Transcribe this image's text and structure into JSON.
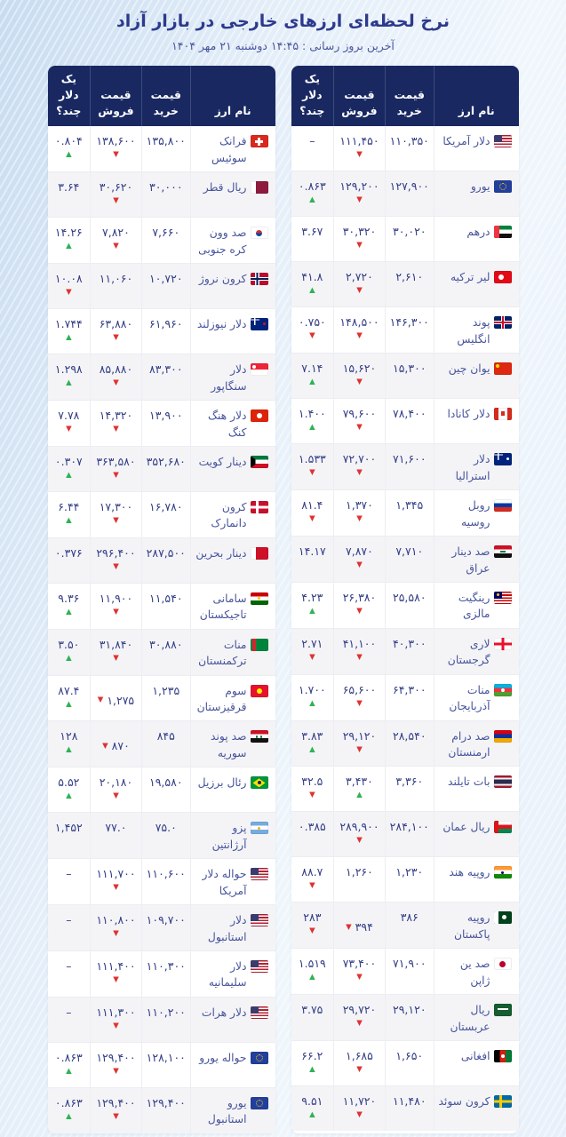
{
  "page": {
    "title": "نرخ لحظه‌ای ارزهای خارجی در بازار آزاد",
    "subtitle": "آخرین بروز رسانی : ۱۴:۴۵ دوشنبه ۲۱ مهر ۱۴۰۴"
  },
  "colors": {
    "header_bg": "#192861",
    "title_text": "#2d3a8c",
    "number_text": "#333e86",
    "up_arrow": "#2eb353",
    "down_arrow": "#e03131",
    "zebra_row": "#f4f4f7"
  },
  "columns": {
    "name": "نام ارز",
    "buy": "قیمت خرید",
    "sell": "قیمت فروش",
    "dollar": "یک دلار چند؟"
  },
  "tables": [
    {
      "rows": [
        {
          "name": "دلار آمریکا",
          "flag": "us",
          "buy": "۱۱۰,۳۵۰",
          "sell": "۱۱۱,۴۵۰",
          "sell_dir": "down",
          "dollar": "–",
          "dollar_dir": ""
        },
        {
          "name": "یورو",
          "flag": "eu",
          "buy": "۱۲۷,۹۰۰",
          "sell": "۱۲۹,۲۰۰",
          "sell_dir": "down",
          "dollar": "۰.۸۶۳",
          "dollar_dir": "up"
        },
        {
          "name": "درهم",
          "flag": "ae",
          "buy": "۳۰,۰۲۰",
          "sell": "۳۰,۳۲۰",
          "sell_dir": "down",
          "dollar": "۳.۶۷",
          "dollar_dir": ""
        },
        {
          "name": "لیر ترکیه",
          "flag": "tr",
          "buy": "۲,۶۱۰",
          "sell": "۲,۷۲۰",
          "sell_dir": "down",
          "dollar": "۴۱.۸",
          "dollar_dir": "up"
        },
        {
          "name": "پوند انگلیس",
          "flag": "gb",
          "buy": "۱۴۶,۳۰۰",
          "sell": "۱۴۸,۵۰۰",
          "sell_dir": "down",
          "dollar": "۰.۷۵۰",
          "dollar_dir": "down"
        },
        {
          "name": "یوان چین",
          "flag": "cn",
          "buy": "۱۵,۳۰۰",
          "sell": "۱۵,۶۲۰",
          "sell_dir": "down",
          "dollar": "۷.۱۴",
          "dollar_dir": "up"
        },
        {
          "name": "دلار کانادا",
          "flag": "ca",
          "buy": "۷۸,۴۰۰",
          "sell": "۷۹,۶۰۰",
          "sell_dir": "down",
          "dollar": "۱.۴۰۰",
          "dollar_dir": "up"
        },
        {
          "name": "دلار استرالیا",
          "flag": "au",
          "buy": "۷۱,۶۰۰",
          "sell": "۷۲,۷۰۰",
          "sell_dir": "down",
          "dollar": "۱.۵۳۳",
          "dollar_dir": "down"
        },
        {
          "name": "روبل روسیه",
          "flag": "ru",
          "buy": "۱,۳۴۵",
          "sell": "۱,۳۷۰",
          "sell_dir": "down",
          "dollar": "۸۱.۴",
          "dollar_dir": "down"
        },
        {
          "name": "صد دینار عراق",
          "flag": "iq",
          "buy": "۷,۷۱۰",
          "sell": "۷,۸۷۰",
          "sell_dir": "down",
          "dollar": "۱۴.۱۷",
          "dollar_dir": ""
        },
        {
          "name": "رینگیت مالزی",
          "flag": "my",
          "buy": "۲۵,۵۸۰",
          "sell": "۲۶,۳۸۰",
          "sell_dir": "down",
          "dollar": "۴.۲۳",
          "dollar_dir": "up"
        },
        {
          "name": "لاری گرجستان",
          "flag": "ge",
          "buy": "۴۰,۳۰۰",
          "sell": "۴۱,۱۰۰",
          "sell_dir": "down",
          "dollar": "۲.۷۱",
          "dollar_dir": "down"
        },
        {
          "name": "منات آذربایجان",
          "flag": "az",
          "buy": "۶۴,۳۰۰",
          "sell": "۶۵,۶۰۰",
          "sell_dir": "down",
          "dollar": "۱.۷۰۰",
          "dollar_dir": "up"
        },
        {
          "name": "صد درام ارمنستان",
          "flag": "am",
          "buy": "۲۸,۵۴۰",
          "sell": "۲۹,۱۲۰",
          "sell_dir": "down",
          "dollar": "۳.۸۳",
          "dollar_dir": "up"
        },
        {
          "name": "بات تایلند",
          "flag": "th",
          "buy": "۳,۳۶۰",
          "sell": "۳,۴۳۰",
          "sell_dir": "up",
          "dollar": "۳۲.۵",
          "dollar_dir": "down"
        },
        {
          "name": "ریال عمان",
          "flag": "om",
          "buy": "۲۸۴,۱۰۰",
          "sell": "۲۸۹,۹۰۰",
          "sell_dir": "down",
          "dollar": "۰.۳۸۵",
          "dollar_dir": ""
        },
        {
          "name": "روپیه هند",
          "flag": "in",
          "buy": "۱,۲۳۰",
          "sell": "۱,۲۶۰",
          "sell_dir": "",
          "dollar": "۸۸.۷",
          "dollar_dir": "down"
        },
        {
          "name": "روپیه پاکستان",
          "flag": "pk",
          "buy": "۳۸۶",
          "sell": "۳۹۴",
          "sell_dir": "down",
          "sell_inline": true,
          "dollar": "۲۸۳",
          "dollar_dir": "down"
        },
        {
          "name": "صد ین ژاپن",
          "flag": "jp",
          "buy": "۷۱,۹۰۰",
          "sell": "۷۳,۴۰۰",
          "sell_dir": "down",
          "dollar": "۱.۵۱۹",
          "dollar_dir": "up"
        },
        {
          "name": "ریال عربستان",
          "flag": "sa",
          "buy": "۲۹,۱۲۰",
          "sell": "۲۹,۷۲۰",
          "sell_dir": "down",
          "dollar": "۳.۷۵",
          "dollar_dir": ""
        },
        {
          "name": "افغانی",
          "flag": "af",
          "buy": "۱,۶۵۰",
          "sell": "۱,۶۸۵",
          "sell_dir": "down",
          "dollar": "۶۶.۲",
          "dollar_dir": "up"
        },
        {
          "name": "کرون سوئد",
          "flag": "se",
          "buy": "۱۱,۴۸۰",
          "sell": "۱۱,۷۲۰",
          "sell_dir": "down",
          "dollar": "۹.۵۱",
          "dollar_dir": "up"
        }
      ]
    },
    {
      "rows": [
        {
          "name": "فرانک سوئیس",
          "flag": "ch",
          "buy": "۱۳۵,۸۰۰",
          "sell": "۱۳۸,۶۰۰",
          "sell_dir": "down",
          "dollar": "۰.۸۰۴",
          "dollar_dir": "up"
        },
        {
          "name": "ریال قطر",
          "flag": "qa",
          "buy": "۳۰,۰۰۰",
          "sell": "۳۰,۶۲۰",
          "sell_dir": "down",
          "dollar": "۳.۶۴",
          "dollar_dir": ""
        },
        {
          "name": "صد وون کره جنوبی",
          "flag": "kr",
          "buy": "۷,۶۶۰",
          "sell": "۷,۸۲۰",
          "sell_dir": "down",
          "dollar": "۱۴.۲۶",
          "dollar_dir": "up"
        },
        {
          "name": "کرون نروژ",
          "flag": "no",
          "buy": "۱۰,۷۲۰",
          "sell": "۱۱,۰۶۰",
          "sell_dir": "",
          "dollar": "۱۰.۰۸",
          "dollar_dir": "down"
        },
        {
          "name": "دلار نیوزلند",
          "flag": "nz",
          "buy": "۶۱,۹۶۰",
          "sell": "۶۳,۸۸۰",
          "sell_dir": "down",
          "dollar": "۱.۷۴۴",
          "dollar_dir": "up"
        },
        {
          "name": "دلار سنگاپور",
          "flag": "sg",
          "buy": "۸۳,۳۰۰",
          "sell": "۸۵,۸۸۰",
          "sell_dir": "down",
          "dollar": "۱.۲۹۸",
          "dollar_dir": "up"
        },
        {
          "name": "دلار هنگ کنگ",
          "flag": "hk",
          "buy": "۱۳,۹۰۰",
          "sell": "۱۴,۳۲۰",
          "sell_dir": "down",
          "dollar": "۷.۷۸",
          "dollar_dir": "down"
        },
        {
          "name": "دینار کویت",
          "flag": "kw",
          "buy": "۳۵۲,۶۸۰",
          "sell": "۳۶۳,۵۸۰",
          "sell_dir": "down",
          "dollar": "۰.۳۰۷",
          "dollar_dir": "up"
        },
        {
          "name": "کرون دانمارک",
          "flag": "dk",
          "buy": "۱۶,۷۸۰",
          "sell": "۱۷,۳۰۰",
          "sell_dir": "down",
          "dollar": "۶.۴۴",
          "dollar_dir": "up"
        },
        {
          "name": "دینار بحرین",
          "flag": "bh",
          "buy": "۲۸۷,۵۰۰",
          "sell": "۲۹۶,۴۰۰",
          "sell_dir": "down",
          "dollar": "۰.۳۷۶",
          "dollar_dir": ""
        },
        {
          "name": "سامانی تاجیکستان",
          "flag": "tj",
          "buy": "۱۱,۵۴۰",
          "sell": "۱۱,۹۰۰",
          "sell_dir": "down",
          "dollar": "۹.۳۶",
          "dollar_dir": "up"
        },
        {
          "name": "منات ترکمنستان",
          "flag": "tm",
          "buy": "۳۰,۸۸۰",
          "sell": "۳۱,۸۴۰",
          "sell_dir": "down",
          "dollar": "۳.۵۰",
          "dollar_dir": "up"
        },
        {
          "name": "سوم قرقیزستان",
          "flag": "kg",
          "buy": "۱,۲۳۵",
          "sell": "۱,۲۷۵",
          "sell_dir": "down",
          "sell_inline": true,
          "dollar": "۸۷.۴",
          "dollar_dir": "up"
        },
        {
          "name": "صد پوند سوریه",
          "flag": "sy",
          "buy": "۸۴۵",
          "sell": "۸۷۰",
          "sell_dir": "down",
          "sell_inline": true,
          "dollar": "۱۲۸",
          "dollar_dir": "up"
        },
        {
          "name": "رئال برزیل",
          "flag": "br",
          "buy": "۱۹,۵۸۰",
          "sell": "۲۰,۱۸۰",
          "sell_dir": "down",
          "dollar": "۵.۵۲",
          "dollar_dir": "up"
        },
        {
          "name": "پزو آرژانتین",
          "flag": "ar",
          "buy": "۷۵.۰",
          "sell": "۷۷.۰",
          "sell_dir": "",
          "dollar": "۱,۴۵۲",
          "dollar_dir": ""
        },
        {
          "name": "حواله دلار آمریکا",
          "flag": "us",
          "buy": "۱۱۰,۶۰۰",
          "sell": "۱۱۱,۷۰۰",
          "sell_dir": "down",
          "dollar": "–",
          "dollar_dir": ""
        },
        {
          "name": "دلار استانبول",
          "flag": "us",
          "buy": "۱۰۹,۷۰۰",
          "sell": "۱۱۰,۸۰۰",
          "sell_dir": "down",
          "dollar": "–",
          "dollar_dir": ""
        },
        {
          "name": "دلار سلیمانیه",
          "flag": "us",
          "buy": "۱۱۰,۳۰۰",
          "sell": "۱۱۱,۴۰۰",
          "sell_dir": "down",
          "dollar": "–",
          "dollar_dir": ""
        },
        {
          "name": "دلار هرات",
          "flag": "us",
          "buy": "۱۱۰,۲۰۰",
          "sell": "۱۱۱,۳۰۰",
          "sell_dir": "down",
          "dollar": "–",
          "dollar_dir": ""
        },
        {
          "name": "حواله یورو",
          "flag": "eu",
          "buy": "۱۲۸,۱۰۰",
          "sell": "۱۲۹,۴۰۰",
          "sell_dir": "down",
          "dollar": "۰.۸۶۳",
          "dollar_dir": "up"
        },
        {
          "name": "یورو استانبول",
          "flag": "eu",
          "buy": "۱۲۹,۴۰۰",
          "sell": "۱۲۹,۴۰۰",
          "sell_dir": "down",
          "dollar": "۰.۸۶۳",
          "dollar_dir": "up"
        }
      ]
    }
  ]
}
